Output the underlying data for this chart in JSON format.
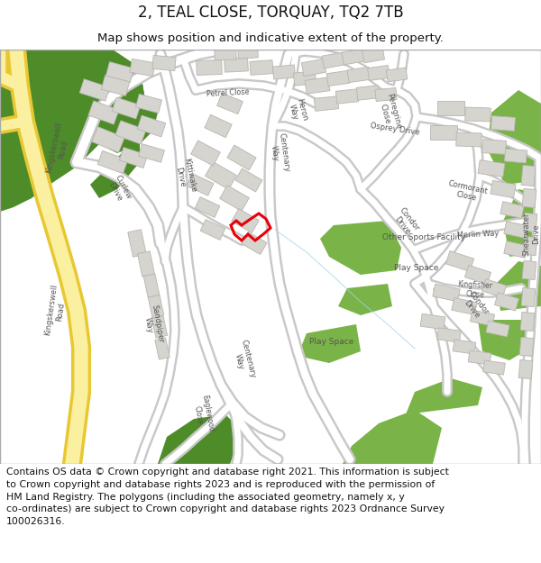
{
  "title": "2, TEAL CLOSE, TORQUAY, TQ2 7TB",
  "subtitle": "Map shows position and indicative extent of the property.",
  "footer": "Contains OS data © Crown copyright and database right 2021. This information is subject\nto Crown copyright and database rights 2023 and is reproduced with the permission of\nHM Land Registry. The polygons (including the associated geometry, namely x, y\nco-ordinates) are subject to Crown copyright and database rights 2023 Ordnance Survey\n100026316.",
  "map_bg": "#f5f3ee",
  "road_color": "#ffffff",
  "road_outline": "#c8c8c8",
  "road_outline2": "#d4d4d4",
  "building_fill": "#d6d4cf",
  "building_outline": "#b8b5b0",
  "green_fill": "#7ab347",
  "green_dark": "#4d8c28",
  "road_yellow": "#faf0a0",
  "road_yellow_outline": "#e8c832",
  "highlight_color": "#e8000a",
  "title_fontsize": 12,
  "subtitle_fontsize": 9.5,
  "footer_fontsize": 7.8
}
